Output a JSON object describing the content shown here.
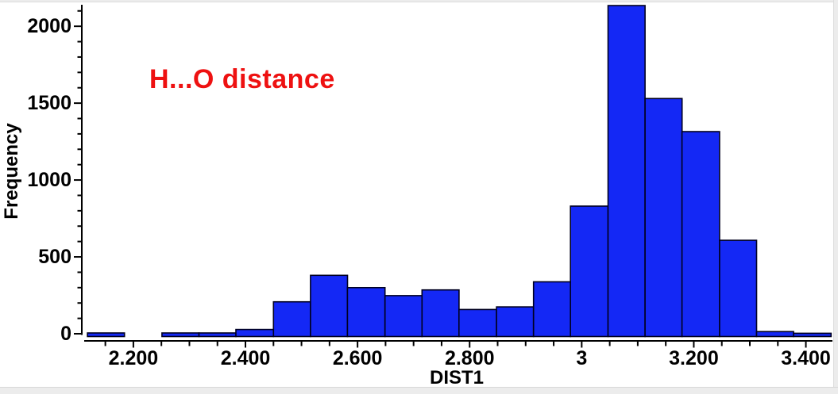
{
  "title": {
    "text": "H...O distance",
    "color": "#ee1111"
  },
  "frame": {
    "strip_color": "#ececec",
    "edge_color": "#d8d8d8",
    "background": "#ffffff"
  },
  "chart_data": {
    "type": "bar",
    "subtype": "histogram",
    "title": "H...O distance",
    "xlabel": "DIST1",
    "ylabel": "Frequency",
    "grid": false,
    "legend": false,
    "bar_color": "#1428f5",
    "bar_edge_color": "#000020",
    "axis_color": "#000000",
    "xlim": [
      2.108,
      3.446
    ],
    "ylim": [
      0,
      2140
    ],
    "bin_edges": [
      2.118,
      2.184,
      2.251,
      2.317,
      2.383,
      2.45,
      2.516,
      2.582,
      2.649,
      2.715,
      2.781,
      2.848,
      2.914,
      2.98,
      3.047,
      3.113,
      3.179,
      3.246,
      3.312,
      3.378,
      3.445
    ],
    "values": [
      5,
      0,
      5,
      5,
      28,
      208,
      380,
      300,
      248,
      285,
      158,
      175,
      338,
      830,
      2135,
      1530,
      1315,
      608,
      14,
      3
    ],
    "x_major_ticks": [
      {
        "value": 2.2,
        "label": "2.200"
      },
      {
        "value": 2.4,
        "label": "2.400"
      },
      {
        "value": 2.6,
        "label": "2.600"
      },
      {
        "value": 2.8,
        "label": "2.800"
      },
      {
        "value": 3.0,
        "label": "3"
      },
      {
        "value": 3.2,
        "label": "3.200"
      },
      {
        "value": 3.4,
        "label": "3.400"
      }
    ],
    "x_minor_start": 2.15,
    "x_minor_step": 0.05,
    "y_major_ticks": [
      {
        "value": 0,
        "label": "0"
      },
      {
        "value": 500,
        "label": "500"
      },
      {
        "value": 1000,
        "label": "1000"
      },
      {
        "value": 1500,
        "label": "1500"
      },
      {
        "value": 2000,
        "label": "2000"
      }
    ],
    "y_minor_step": 100
  }
}
